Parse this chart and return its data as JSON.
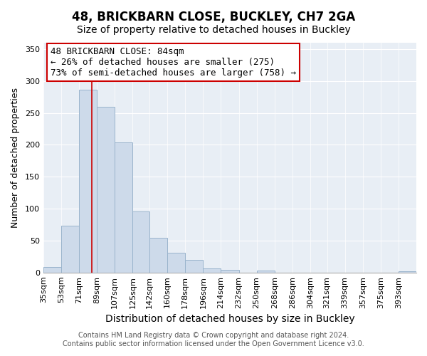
{
  "title": "48, BRICKBARN CLOSE, BUCKLEY, CH7 2GA",
  "subtitle": "Size of property relative to detached houses in Buckley",
  "xlabel": "Distribution of detached houses by size in Buckley",
  "ylabel": "Number of detached properties",
  "bar_labels": [
    "35sqm",
    "53sqm",
    "71sqm",
    "89sqm",
    "107sqm",
    "125sqm",
    "142sqm",
    "160sqm",
    "178sqm",
    "196sqm",
    "214sqm",
    "232sqm",
    "250sqm",
    "268sqm",
    "286sqm",
    "304sqm",
    "321sqm",
    "339sqm",
    "357sqm",
    "375sqm",
    "393sqm"
  ],
  "bar_values": [
    9,
    73,
    286,
    260,
    204,
    96,
    54,
    31,
    20,
    7,
    4,
    0,
    3,
    0,
    0,
    0,
    0,
    0,
    0,
    0,
    2
  ],
  "bar_color": "#cddaea",
  "bar_edge_color": "#9ab4cc",
  "vline_x": 84,
  "vline_color": "#cc0000",
  "annotation_line1": "48 BRICKBARN CLOSE: 84sqm",
  "annotation_line2": "← 26% of detached houses are smaller (275)",
  "annotation_line3": "73% of semi-detached houses are larger (758) →",
  "annotation_box_color": "#ffffff",
  "annotation_box_edge": "#cc0000",
  "ylim": [
    0,
    360
  ],
  "yticks": [
    0,
    50,
    100,
    150,
    200,
    250,
    300,
    350
  ],
  "footer1": "Contains HM Land Registry data © Crown copyright and database right 2024.",
  "footer2": "Contains public sector information licensed under the Open Government Licence v3.0.",
  "background_color": "#ffffff",
  "plot_background_color": "#e8eef5",
  "title_fontsize": 12,
  "subtitle_fontsize": 10,
  "xlabel_fontsize": 10,
  "ylabel_fontsize": 9,
  "tick_fontsize": 8,
  "footer_fontsize": 7,
  "annotation_fontsize": 9,
  "bin_edges": [
    35,
    53,
    71,
    89,
    107,
    125,
    142,
    160,
    178,
    196,
    214,
    232,
    250,
    268,
    286,
    304,
    321,
    339,
    357,
    375,
    393,
    411
  ]
}
